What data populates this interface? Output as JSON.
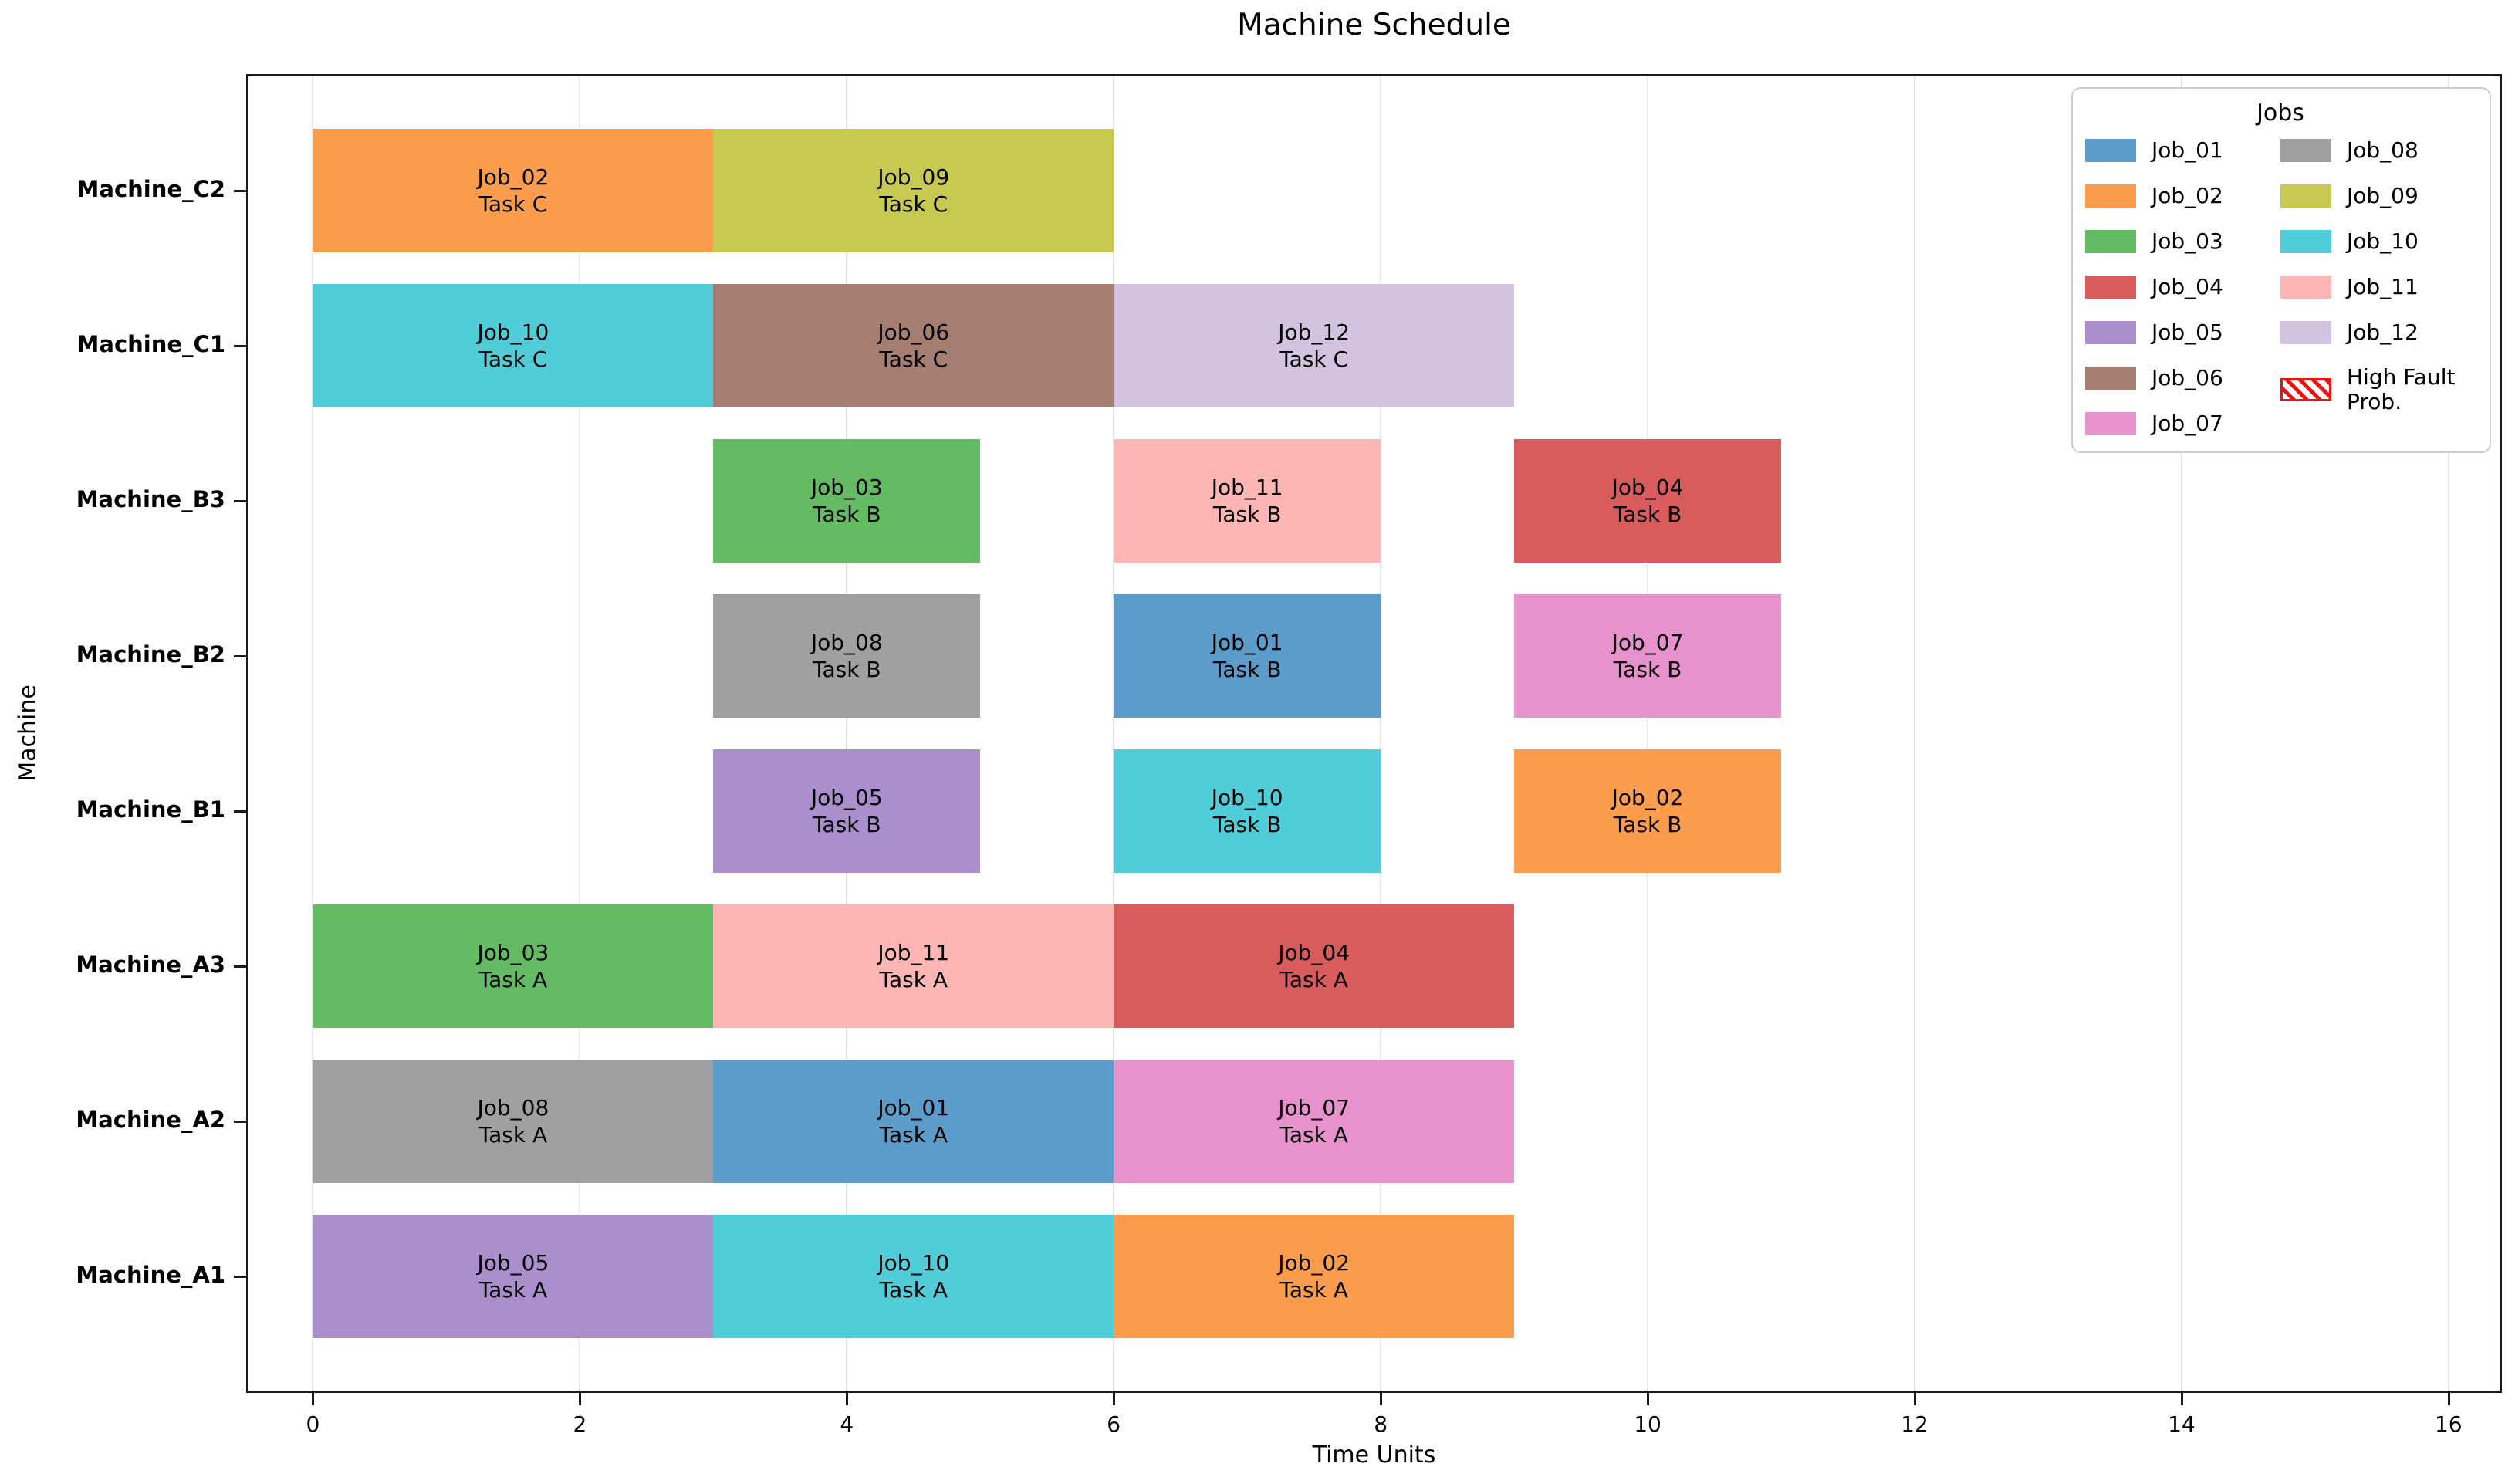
{
  "title": "Machine Schedule",
  "axes": {
    "xlabel": "Time Units",
    "ylabel": "Machine"
  },
  "legend": {
    "title": "Jobs",
    "high_fault_label_lines": [
      "High Fault",
      "Prob."
    ],
    "high_fault_color": "#ee1111"
  },
  "jobs": [
    {
      "id": "Job_01",
      "color": "#5b9cca"
    },
    {
      "id": "Job_02",
      "color": "#fb9d4d"
    },
    {
      "id": "Job_03",
      "color": "#64bb64"
    },
    {
      "id": "Job_04",
      "color": "#d95c5c"
    },
    {
      "id": "Job_05",
      "color": "#ab8fcc"
    },
    {
      "id": "Job_06",
      "color": "#a57d71"
    },
    {
      "id": "Job_07",
      "color": "#e791cd"
    },
    {
      "id": "Job_08",
      "color": "#a0a0a0"
    },
    {
      "id": "Job_09",
      "color": "#c8c951"
    },
    {
      "id": "Job_10",
      "color": "#50cdd9"
    },
    {
      "id": "Job_11",
      "color": "#fdb6b3"
    },
    {
      "id": "Job_12",
      "color": "#d2c3e0"
    }
  ],
  "chart_data": {
    "type": "gantt",
    "title": "Machine Schedule",
    "xlabel": "Time Units",
    "ylabel": "Machine",
    "x_ticks": [
      0,
      2,
      4,
      6,
      8,
      10,
      12,
      14,
      16
    ],
    "xlim": [
      -0.5,
      16.4
    ],
    "grid": "vertical-only",
    "legend_position": "upper right",
    "machines_top_to_bottom": [
      "Machine_C2",
      "Machine_C1",
      "Machine_B3",
      "Machine_B2",
      "Machine_B1",
      "Machine_A3",
      "Machine_A2",
      "Machine_A1"
    ],
    "bars": [
      {
        "machine": "Machine_C2",
        "job": "Job_02",
        "task": "Task C",
        "start": 0,
        "end": 3
      },
      {
        "machine": "Machine_C2",
        "job": "Job_09",
        "task": "Task C",
        "start": 3,
        "end": 6
      },
      {
        "machine": "Machine_C1",
        "job": "Job_10",
        "task": "Task C",
        "start": 0,
        "end": 3
      },
      {
        "machine": "Machine_C1",
        "job": "Job_06",
        "task": "Task C",
        "start": 3,
        "end": 6
      },
      {
        "machine": "Machine_C1",
        "job": "Job_12",
        "task": "Task C",
        "start": 6,
        "end": 9
      },
      {
        "machine": "Machine_B3",
        "job": "Job_03",
        "task": "Task B",
        "start": 3,
        "end": 5
      },
      {
        "machine": "Machine_B3",
        "job": "Job_11",
        "task": "Task B",
        "start": 6,
        "end": 8
      },
      {
        "machine": "Machine_B3",
        "job": "Job_04",
        "task": "Task B",
        "start": 9,
        "end": 11
      },
      {
        "machine": "Machine_B2",
        "job": "Job_08",
        "task": "Task B",
        "start": 3,
        "end": 5
      },
      {
        "machine": "Machine_B2",
        "job": "Job_01",
        "task": "Task B",
        "start": 6,
        "end": 8
      },
      {
        "machine": "Machine_B2",
        "job": "Job_07",
        "task": "Task B",
        "start": 9,
        "end": 11
      },
      {
        "machine": "Machine_B1",
        "job": "Job_05",
        "task": "Task B",
        "start": 3,
        "end": 5
      },
      {
        "machine": "Machine_B1",
        "job": "Job_10",
        "task": "Task B",
        "start": 6,
        "end": 8
      },
      {
        "machine": "Machine_B1",
        "job": "Job_02",
        "task": "Task B",
        "start": 9,
        "end": 11
      },
      {
        "machine": "Machine_A3",
        "job": "Job_03",
        "task": "Task A",
        "start": 0,
        "end": 3
      },
      {
        "machine": "Machine_A3",
        "job": "Job_11",
        "task": "Task A",
        "start": 3,
        "end": 6
      },
      {
        "machine": "Machine_A3",
        "job": "Job_04",
        "task": "Task A",
        "start": 6,
        "end": 9
      },
      {
        "machine": "Machine_A2",
        "job": "Job_08",
        "task": "Task A",
        "start": 0,
        "end": 3
      },
      {
        "machine": "Machine_A2",
        "job": "Job_01",
        "task": "Task A",
        "start": 3,
        "end": 6
      },
      {
        "machine": "Machine_A2",
        "job": "Job_07",
        "task": "Task A",
        "start": 6,
        "end": 9
      },
      {
        "machine": "Machine_A1",
        "job": "Job_05",
        "task": "Task A",
        "start": 0,
        "end": 3
      },
      {
        "machine": "Machine_A1",
        "job": "Job_10",
        "task": "Task A",
        "start": 3,
        "end": 6
      },
      {
        "machine": "Machine_A1",
        "job": "Job_02",
        "task": "Task A",
        "start": 6,
        "end": 9
      }
    ]
  }
}
